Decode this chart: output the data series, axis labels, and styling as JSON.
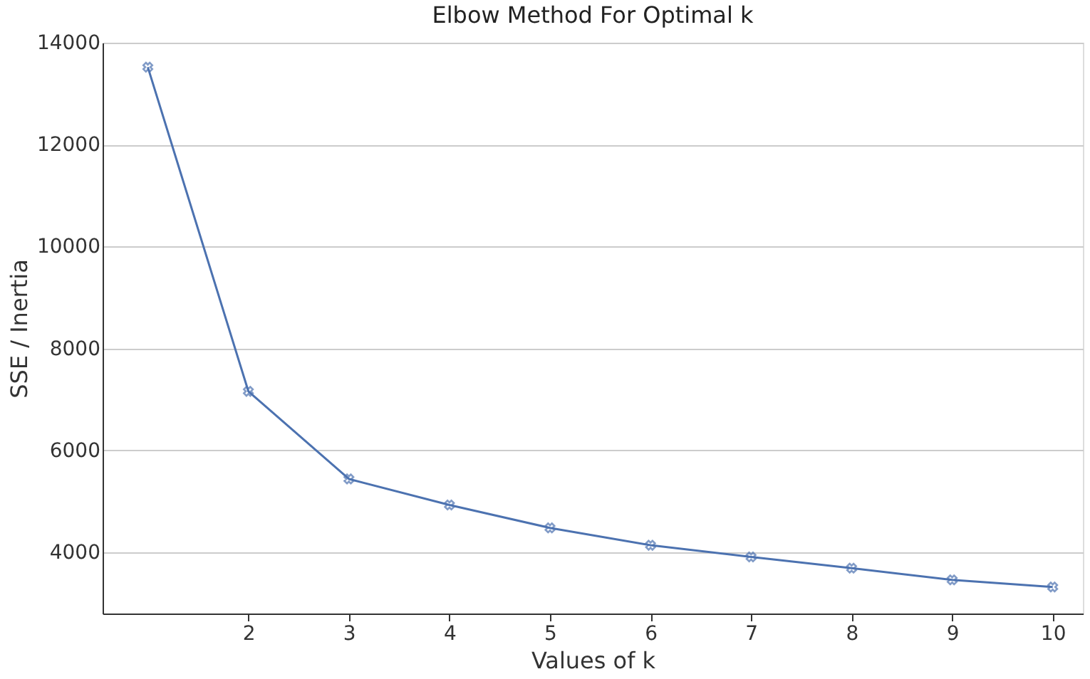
{
  "chart_data": {
    "type": "line",
    "title": "Elbow Method For Optimal k",
    "xlabel": "Values of k",
    "ylabel": "SSE / Inertia",
    "x": [
      1,
      2,
      3,
      4,
      5,
      6,
      7,
      8,
      9,
      10
    ],
    "series": [
      {
        "color": "#4c72b0",
        "values": [
          13520,
          7160,
          5440,
          4930,
          4480,
          4140,
          3910,
          3690,
          3460,
          3320
        ]
      }
    ],
    "xlim": [
      0.55,
      10.3
    ],
    "xticks": [
      2,
      3,
      4,
      5,
      6,
      7,
      8,
      9,
      10
    ],
    "ylim": [
      2800,
      14000
    ],
    "yticks": [
      4000,
      6000,
      8000,
      10000,
      12000,
      14000
    ],
    "grid": "y",
    "marker": "cross",
    "line_style": "solid"
  }
}
